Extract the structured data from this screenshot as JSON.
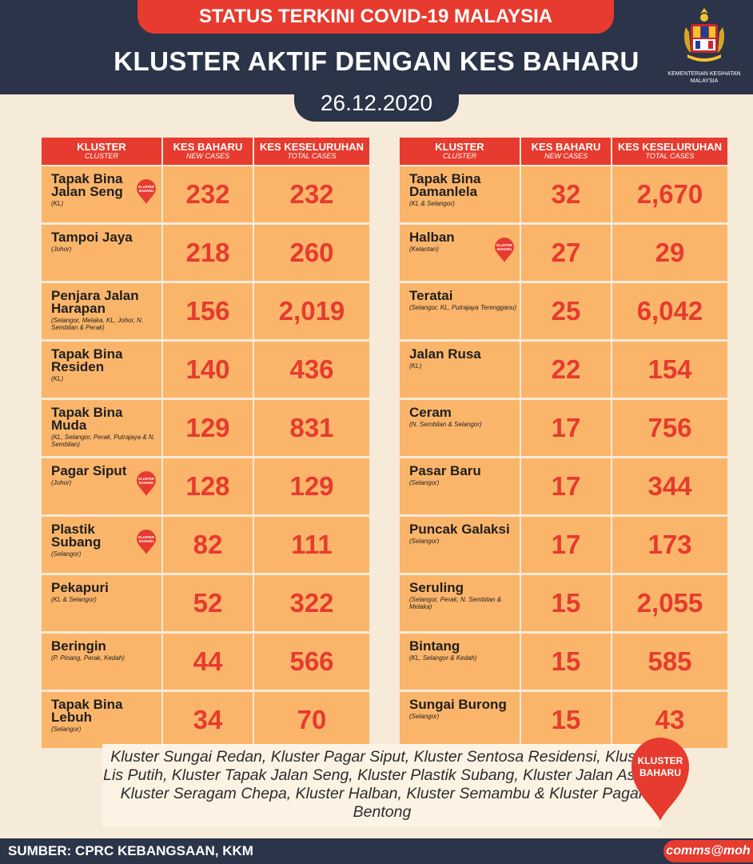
{
  "header": {
    "top_banner": "STATUS TERKINI COVID-19 MALAYSIA",
    "title": "KLUSTER AKTIF DENGAN KES BAHARU",
    "date": "26.12.2020",
    "ministry": "KEMENTERIAN KESIHATAN MALAYSIA",
    "ministry_line1": "KEMENTERIAN KESIHATAN",
    "ministry_line2": "MALAYSIA"
  },
  "columns": {
    "cluster": "KLUSTER",
    "cluster_sub": "CLUSTER",
    "new": "KES BAHARU",
    "new_sub": "NEW CASES",
    "total": "KES KESELURUHAN",
    "total_sub": "TOTAL CASES"
  },
  "badge": {
    "line1": "KLUSTER",
    "line2": "BAHARU",
    "color": "#e63b2e"
  },
  "left_clusters": [
    {
      "name": "Tapak Bina Jalan Seng",
      "location": "(KL)",
      "new_cases": "232",
      "total_cases": "232",
      "new_cluster": true
    },
    {
      "name": "Tampoi Jaya",
      "location": "(Johor)",
      "new_cases": "218",
      "total_cases": "260",
      "new_cluster": false
    },
    {
      "name": "Penjara Jalan Harapan",
      "location": "(Selangor, Melaka, KL, Johor, N. Sembilan & Perak)",
      "new_cases": "156",
      "total_cases": "2,019",
      "new_cluster": false
    },
    {
      "name": "Tapak Bina Residen",
      "location": "(KL)",
      "new_cases": "140",
      "total_cases": "436",
      "new_cluster": false
    },
    {
      "name": "Tapak Bina Muda",
      "location": "(KL, Selangor, Perak, Putrajaya & N. Sembilan)",
      "new_cases": "129",
      "total_cases": "831",
      "new_cluster": false
    },
    {
      "name": "Pagar Siput",
      "location": "(Johor)",
      "new_cases": "128",
      "total_cases": "129",
      "new_cluster": true
    },
    {
      "name": "Plastik Subang",
      "location": "(Selangor)",
      "new_cases": "82",
      "total_cases": "111",
      "new_cluster": true
    },
    {
      "name": "Pekapuri",
      "location": "(KL & Selangor)",
      "new_cases": "52",
      "total_cases": "322",
      "new_cluster": false
    },
    {
      "name": "Beringin",
      "location": "(P. Pinang, Perak, Kedah)",
      "new_cases": "44",
      "total_cases": "566",
      "new_cluster": false
    },
    {
      "name": "Tapak Bina Lebuh",
      "location": "(Selangor)",
      "new_cases": "34",
      "total_cases": "70",
      "new_cluster": false
    }
  ],
  "right_clusters": [
    {
      "name": "Tapak Bina Damanlela",
      "location": "(KL & Selangor)",
      "new_cases": "32",
      "total_cases": "2,670",
      "new_cluster": false
    },
    {
      "name": "Halban",
      "location": "(Kelantan)",
      "new_cases": "27",
      "total_cases": "29",
      "new_cluster": true
    },
    {
      "name": "Teratai",
      "location": "(Selangor, KL, Putrajaya Terengganu)",
      "new_cases": "25",
      "total_cases": "6,042",
      "new_cluster": false
    },
    {
      "name": "Jalan Rusa",
      "location": "(KL)",
      "new_cases": "22",
      "total_cases": "154",
      "new_cluster": false
    },
    {
      "name": "Ceram",
      "location": "(N. Sembilan & Selangor)",
      "new_cases": "17",
      "total_cases": "756",
      "new_cluster": false
    },
    {
      "name": "Pasar Baru",
      "location": "(Selangor)",
      "new_cases": "17",
      "total_cases": "344",
      "new_cluster": false
    },
    {
      "name": "Puncak Galaksi",
      "location": "(Selangor)",
      "new_cases": "17",
      "total_cases": "173",
      "new_cluster": false
    },
    {
      "name": "Seruling",
      "location": "(Selangor, Perak, N. Sembilan & Melaka)",
      "new_cases": "15",
      "total_cases": "2,055",
      "new_cluster": false
    },
    {
      "name": "Bintang",
      "location": "(KL, Selangor & Kedah)",
      "new_cases": "15",
      "total_cases": "585",
      "new_cluster": false
    },
    {
      "name": "Sungai Burong",
      "location": "(Selangor)",
      "new_cases": "15",
      "total_cases": "43",
      "new_cluster": false
    }
  ],
  "new_clusters_note": "Kluster Sungai Redan, Kluster Pagar Siput, Kluster Sentosa Residensi, Kluster Lis Putih, Kluster Tapak Jalan Seng, Kluster Plastik Subang, Kluster Jalan Asam, Kluster Seragam Chepa, Kluster Halban, Kluster Semambu & Kluster Pagar Bentong",
  "footer": {
    "source": "SUMBER: CPRC KEBANGSAAN, KKM",
    "handle": "comms@moh"
  },
  "colors": {
    "navy": "#2b3449",
    "red": "#e63b2e",
    "cell": "#fbb56a",
    "background": "#f6ead8"
  },
  "icons": [
    "malaysia-coat-of-arms-icon",
    "kluster-baharu-pin-icon"
  ]
}
